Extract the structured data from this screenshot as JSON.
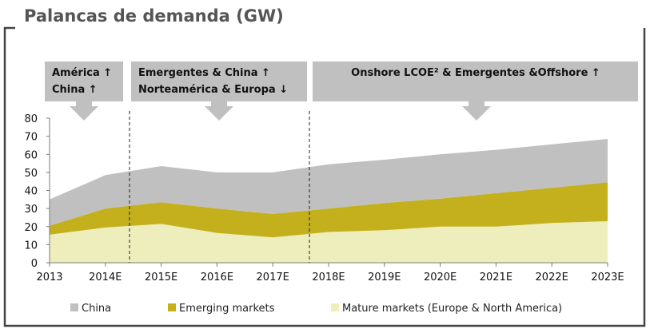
{
  "title": "Palancas de demanda (GW)",
  "colors": {
    "China": "#c0c0c0",
    "Emerging markets": "#c4b01c",
    "Mature markets (Europe & North America)": "#eeeebc",
    "banner": "#c0c0c0",
    "frame": "#444444"
  },
  "icons": [
    "down-arrow-icon"
  ],
  "chart_data": {
    "type": "area",
    "stacked": true,
    "title": "Palancas de demanda (GW)",
    "xlabel": "",
    "ylabel": "",
    "ylim": [
      0,
      80
    ],
    "yticks": [
      "0",
      "10",
      "20",
      "30",
      "40",
      "50",
      "60",
      "70",
      "80"
    ],
    "categories": [
      "2013",
      "2014E",
      "2015E",
      "2016E",
      "2017E",
      "2018E",
      "2019E",
      "2020E",
      "2021E",
      "2022E",
      "2023E"
    ],
    "series": [
      {
        "name": "Mature markets (Europe & North America)",
        "values": [
          15.5,
          19.5,
          21.5,
          16.5,
          14,
          17,
          18,
          20,
          20,
          22,
          23
        ]
      },
      {
        "name": "Emerging markets",
        "values": [
          5,
          10.5,
          12,
          13.5,
          13,
          13,
          15,
          15.5,
          18.5,
          19.5,
          21.5
        ]
      },
      {
        "name": "China",
        "values": [
          14.5,
          18.5,
          20,
          20,
          23,
          24.5,
          24,
          24.5,
          24,
          24,
          24
        ]
      }
    ],
    "legend": [
      "China",
      "Emerging markets",
      "Mature markets (Europe & North America)"
    ],
    "legend_position": "bottom",
    "annotations": [
      {
        "lines": [
          "América ↑",
          "China ↑"
        ]
      },
      {
        "lines": [
          "Emergentes & China ↑",
          "Norteamérica & Europa ↓"
        ]
      },
      {
        "lines": [
          "Onshore LCOE² & Emergentes &Offshore ↑"
        ]
      }
    ]
  }
}
